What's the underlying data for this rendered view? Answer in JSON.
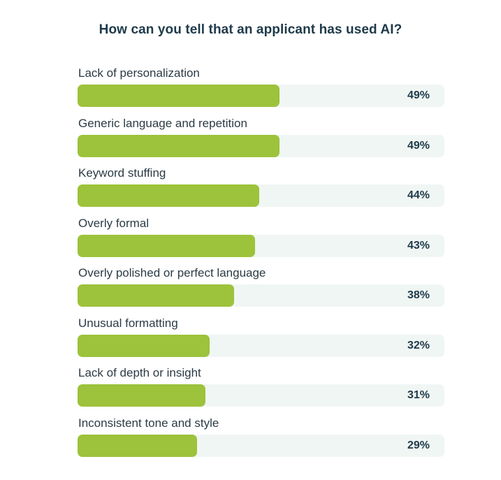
{
  "colors": {
    "bar": "#9dc23b",
    "track": "#f0f6f3",
    "title": "#1e3a4a",
    "label": "#2b3b45"
  },
  "chart_data": {
    "type": "bar",
    "orientation": "horizontal",
    "title": "How can you tell that an applicant has used AI?",
    "categories": [
      "Lack of personalization",
      "Generic language and repetition",
      "Keyword stuffing",
      "Overly formal",
      "Overly polished or perfect language",
      "Unusual formatting",
      "Lack of depth or insight",
      "Inconsistent tone and style"
    ],
    "values": [
      49,
      49,
      44,
      43,
      38,
      32,
      31,
      29
    ],
    "value_labels": [
      "49%",
      "49%",
      "44%",
      "43%",
      "38%",
      "32%",
      "31%",
      "29%"
    ],
    "unit": "%",
    "xlim": [
      0,
      89
    ],
    "grid": false,
    "legend": "none"
  }
}
